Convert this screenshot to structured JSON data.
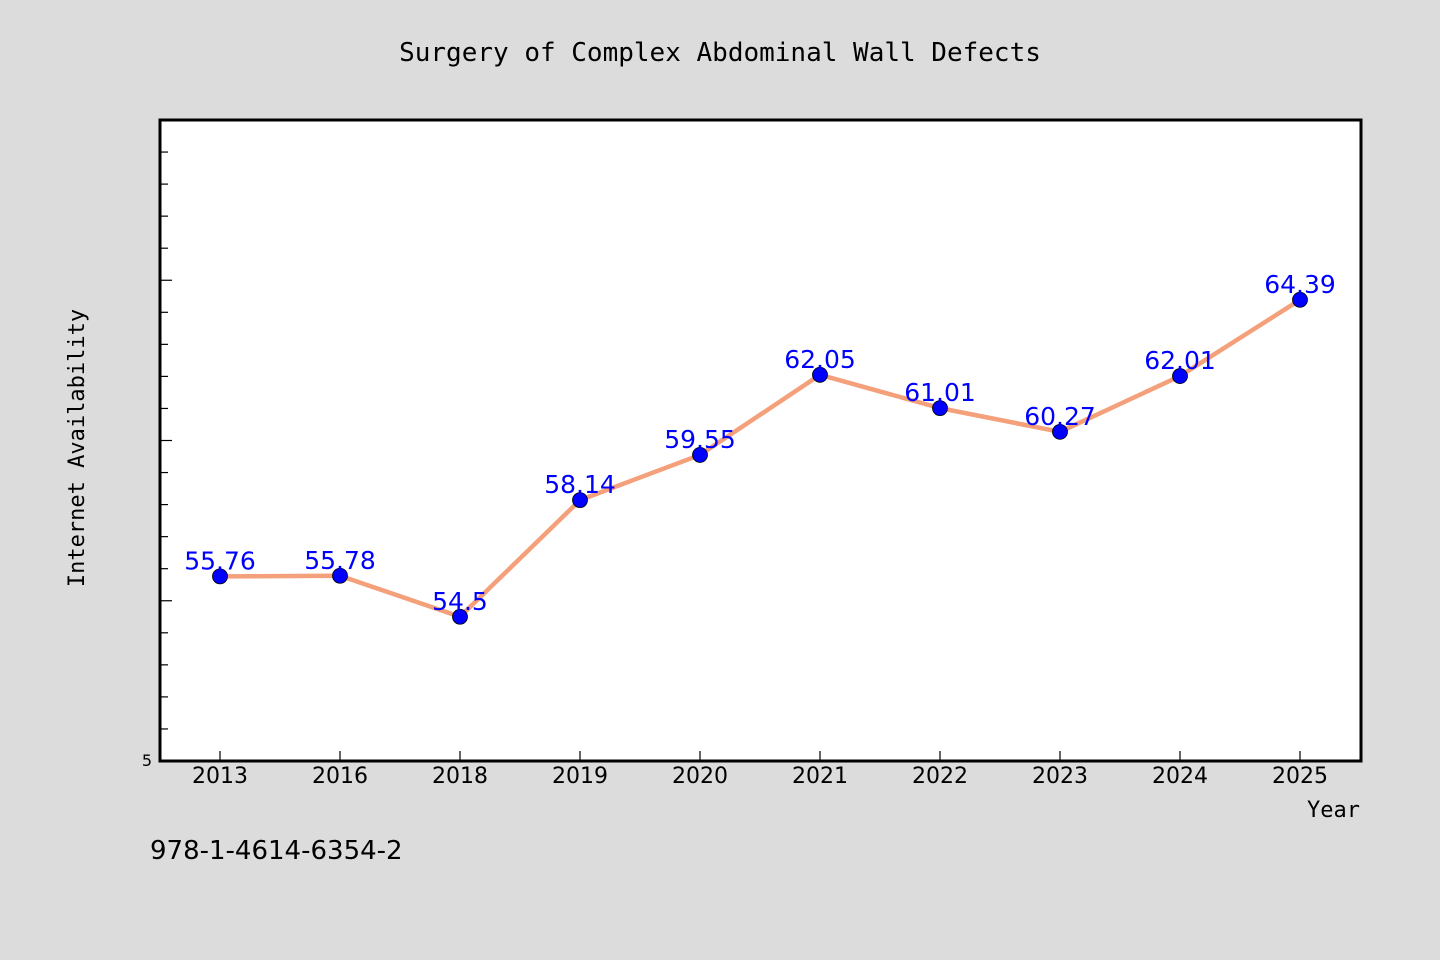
{
  "chart_data": {
    "type": "line",
    "title": "Surgery of Complex Abdominal Wall Defects",
    "xlabel": "Year",
    "ylabel": "Internet Availability",
    "categories": [
      "2013",
      "2016",
      "2018",
      "2019",
      "2020",
      "2021",
      "2022",
      "2023",
      "2024",
      "2025"
    ],
    "series": [
      {
        "values": [
          55.76,
          55.78,
          54.5,
          58.14,
          59.55,
          62.05,
          61.01,
          60.27,
          62.01,
          64.39
        ],
        "data_labels": [
          "55.76",
          "55.78",
          "54.5",
          "58.14",
          "59.55",
          "62.05",
          "61.01",
          "60.27",
          "62.01",
          "64.39"
        ]
      }
    ],
    "ylim": [
      50,
      70
    ],
    "y_tick_labels": [
      "5"
    ],
    "grid": false,
    "line_color": "#f4a07a",
    "marker_color": "#0000ff",
    "label_color": "#0000ff",
    "background_color": "#dcdcdc",
    "plot_background": "#ffffff"
  },
  "footnote": "978-1-4614-6354-2"
}
